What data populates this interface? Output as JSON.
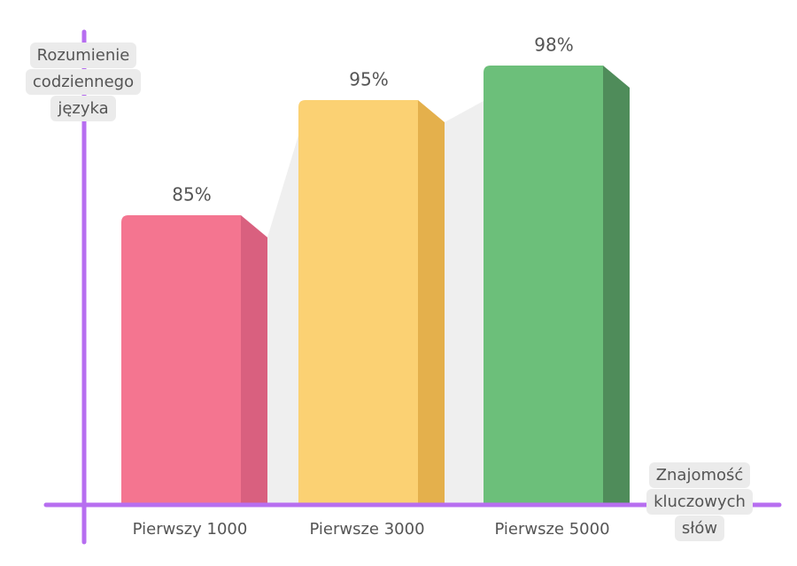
{
  "chart_data": {
    "type": "bar",
    "y_label": "Rozumienie codziennego języka",
    "x_label": "Znajomość kluczowych słów",
    "categories": [
      "Pierwszy 1000",
      "Pierwsze 3000",
      "Pierwsze 5000"
    ],
    "values": [
      85,
      95,
      98
    ],
    "value_labels": [
      "85%",
      "95%",
      "98%"
    ],
    "colors": [
      "#f47590",
      "#fbd173",
      "#6cbf7a"
    ],
    "side_colors": [
      "#d9607f",
      "#e4b04c",
      "#4f8c5a"
    ],
    "ylim": [
      60,
      100
    ],
    "axis_color": "#b76ef0"
  }
}
